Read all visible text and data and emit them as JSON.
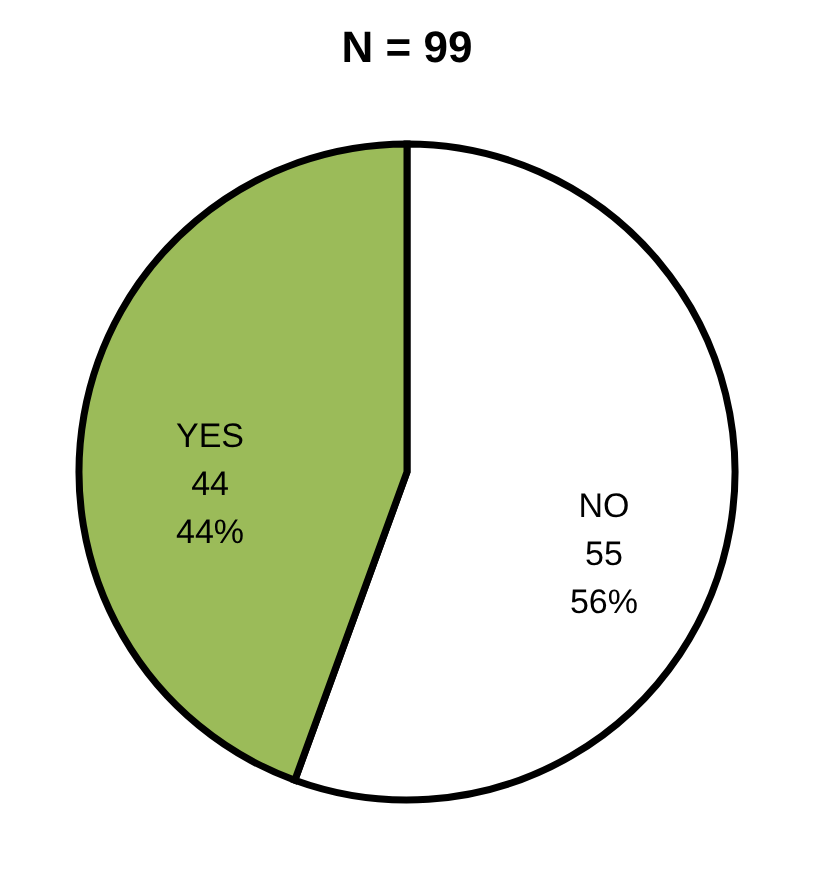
{
  "chart_data": {
    "type": "pie",
    "title": "N = 99",
    "categories": [
      "NO",
      "YES"
    ],
    "values": [
      55,
      44
    ],
    "colors": [
      "#ffffff",
      "#9bbb59"
    ],
    "value_labels": [
      "55\n56%",
      "44\n44%"
    ],
    "legend": false
  }
}
